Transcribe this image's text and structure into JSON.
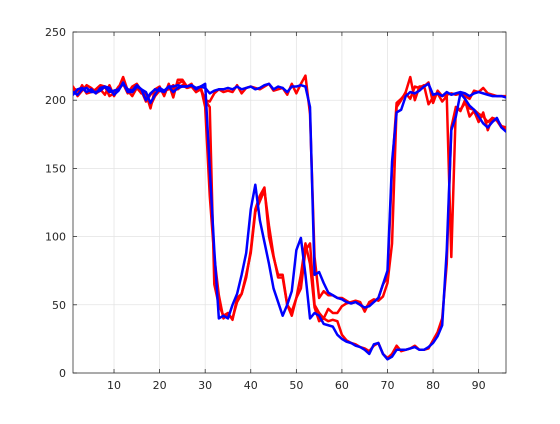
{
  "chart_data": {
    "type": "line",
    "title": "",
    "xlabel": "",
    "ylabel": "",
    "xlim": [
      1,
      96
    ],
    "ylim": [
      0,
      250
    ],
    "grid": true,
    "legend": "none",
    "xticks": [
      10,
      20,
      30,
      40,
      50,
      60,
      70,
      80,
      90
    ],
    "yticks": [
      0,
      50,
      100,
      150,
      200,
      250
    ],
    "x": [
      1,
      2,
      3,
      4,
      5,
      6,
      7,
      8,
      9,
      10,
      11,
      12,
      13,
      14,
      15,
      16,
      17,
      18,
      19,
      20,
      21,
      22,
      23,
      24,
      25,
      26,
      27,
      28,
      29,
      30,
      31,
      32,
      33,
      34,
      35,
      36,
      37,
      38,
      39,
      40,
      41,
      42,
      43,
      44,
      45,
      46,
      47,
      48,
      49,
      50,
      51,
      52,
      53,
      54,
      55,
      56,
      57,
      58,
      59,
      60,
      61,
      62,
      63,
      64,
      65,
      66,
      67,
      68,
      69,
      70,
      71,
      72,
      73,
      74,
      75,
      76,
      77,
      78,
      79,
      80,
      81,
      82,
      83,
      84,
      85,
      86,
      87,
      88,
      89,
      90,
      91,
      92,
      93,
      94,
      95,
      96
    ],
    "series": [
      {
        "color": "#ff0000",
        "values": [
          210,
          203,
          207,
          211,
          209,
          206,
          208,
          204,
          211,
          203,
          209,
          217,
          207,
          203,
          209,
          205,
          205,
          194,
          208,
          210,
          203,
          212,
          202,
          215,
          215,
          210,
          212,
          206,
          210,
          195,
          130,
          85,
          57,
          40,
          43,
          40,
          52,
          58,
          70,
          90,
          120,
          130,
          136,
          100,
          85,
          72,
          72,
          50,
          45,
          55,
          72,
          95,
          80,
          48,
          38,
          40,
          47,
          44,
          44,
          49,
          51,
          52,
          53,
          52,
          45,
          52,
          54,
          53,
          56,
          66,
          95,
          195,
          200,
          206,
          217,
          200,
          210,
          210,
          213,
          198,
          207,
          203,
          204,
          205,
          204,
          205,
          203,
          201,
          207,
          206,
          209,
          205,
          204,
          203,
          203,
          203
        ]
      },
      {
        "color": "#ff0000",
        "values": [
          208,
          204,
          211,
          205,
          206,
          208,
          211,
          210,
          206,
          207,
          208,
          212,
          205,
          210,
          212,
          207,
          199,
          204,
          208,
          207,
          207,
          208,
          211,
          208,
          211,
          209,
          210,
          209,
          209,
          200,
          199,
          205,
          208,
          206,
          207,
          206,
          211,
          205,
          209,
          210,
          209,
          208,
          210,
          212,
          207,
          208,
          209,
          204,
          212,
          205,
          212,
          218,
          190,
          85,
          55,
          60,
          57,
          57,
          55,
          55,
          53,
          51,
          52,
          50,
          47,
          51,
          52,
          55,
          65,
          70,
          150,
          198,
          201,
          205,
          201,
          210,
          209,
          211,
          197,
          202,
          205,
          199,
          203,
          85,
          195,
          192,
          200,
          188,
          192,
          184,
          191,
          178,
          187,
          185,
          180,
          178
        ]
      },
      {
        "color": "#ff0000",
        "values": [
          209,
          207,
          210,
          205,
          208,
          205,
          207,
          210,
          203,
          205,
          210,
          212,
          208,
          207,
          211,
          205,
          205,
          196,
          203,
          207,
          206,
          210,
          208,
          212,
          214,
          209,
          210,
          206,
          208,
          200,
          195,
          65,
          50,
          42,
          44,
          39,
          55,
          58,
          72,
          88,
          118,
          126,
          134,
          108,
          86,
          70,
          70,
          50,
          42,
          55,
          62,
          90,
          95,
          50,
          44,
          40,
          38,
          39,
          38,
          28,
          24,
          22,
          21,
          19,
          18,
          16,
          20,
          22,
          14,
          11,
          14,
          20,
          16,
          17,
          18,
          20,
          17,
          17,
          18,
          24,
          30,
          40,
          80,
          180,
          195,
          193,
          198,
          194,
          193,
          190,
          188,
          184,
          187,
          186,
          181,
          180
        ]
      },
      {
        "color": "#0000ff",
        "values": [
          206,
          204,
          208,
          209,
          206,
          206,
          207,
          210,
          209,
          204,
          207,
          213,
          206,
          206,
          210,
          208,
          206,
          198,
          204,
          209,
          207,
          210,
          206,
          209,
          210,
          210,
          211,
          209,
          210,
          209,
          205,
          207,
          208,
          208,
          209,
          208,
          210,
          208,
          209,
          210,
          208,
          209,
          211,
          212,
          208,
          210,
          209,
          206,
          210,
          210,
          211,
          210,
          195,
          72,
          74,
          66,
          59,
          57,
          55,
          54,
          52,
          51,
          52,
          50,
          48,
          49,
          52,
          55,
          65,
          75,
          155,
          191,
          193,
          203,
          206,
          205,
          207,
          210,
          212,
          204,
          205,
          203,
          206,
          204,
          205,
          206,
          205,
          203,
          205,
          206,
          205,
          204,
          203,
          203,
          203,
          202
        ]
      },
      {
        "color": "#0000ff",
        "values": [
          204,
          208,
          209,
          206,
          208,
          205,
          209,
          210,
          206,
          207,
          208,
          212,
          208,
          207,
          211,
          208,
          200,
          205,
          208,
          207,
          206,
          210,
          210,
          211,
          210,
          210,
          211,
          208,
          210,
          212,
          150,
          90,
          40,
          42,
          40,
          50,
          58,
          72,
          88,
          120,
          138,
          112,
          96,
          80,
          62,
          52,
          42,
          50,
          60,
          90,
          99,
          72,
          40,
          44,
          42,
          36,
          35,
          34,
          28,
          25,
          23,
          22,
          20,
          19,
          17,
          14,
          21,
          22,
          14,
          10,
          12,
          17,
          17,
          17,
          18,
          19,
          17,
          17,
          19,
          22,
          27,
          35,
          90,
          178,
          188,
          205,
          201,
          196,
          193,
          188,
          183,
          180,
          184,
          187,
          180,
          177
        ]
      }
    ]
  }
}
